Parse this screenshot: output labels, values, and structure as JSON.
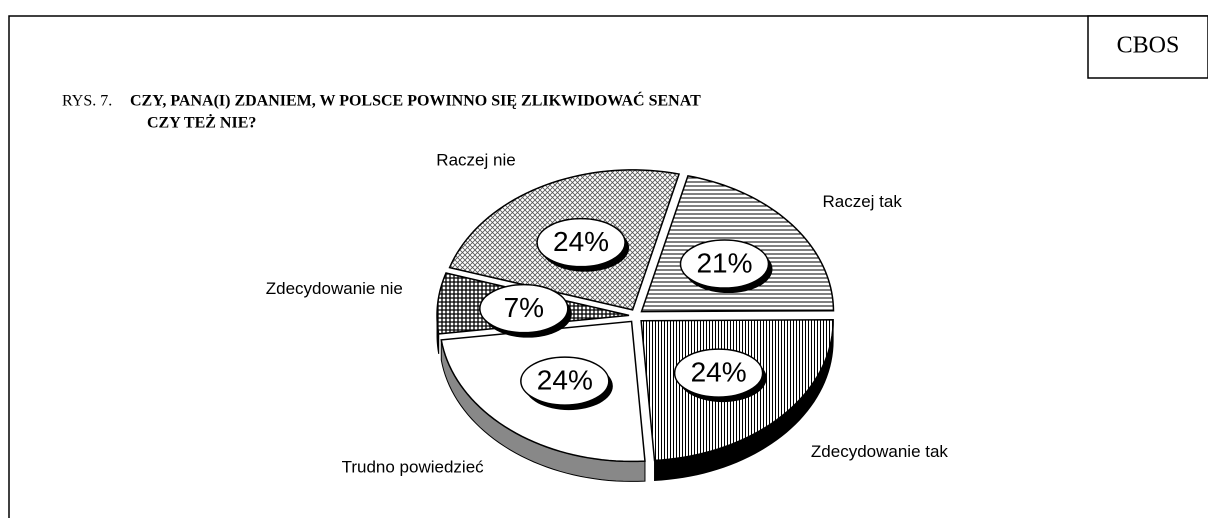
{
  "source": "CBOS",
  "chart_data": {
    "type": "pie",
    "title_prefix": "RYS. 7.",
    "title": [
      "CZY, PANA(I) ZDANIEM, W POLSCE POWINNO SIĘ ZLIKWIDOWAĆ SENAT",
      "CZY TEŻ NIE?"
    ],
    "categories": [
      "Raczej tak",
      "Zdecydowanie tak",
      "Trudno powiedzieć",
      "Zdecydowanie nie",
      "Raczej nie"
    ],
    "values": [
      21,
      24,
      24,
      7,
      24
    ],
    "value_labels": [
      "21%",
      "24%",
      "24%",
      "7%",
      "24%"
    ]
  }
}
